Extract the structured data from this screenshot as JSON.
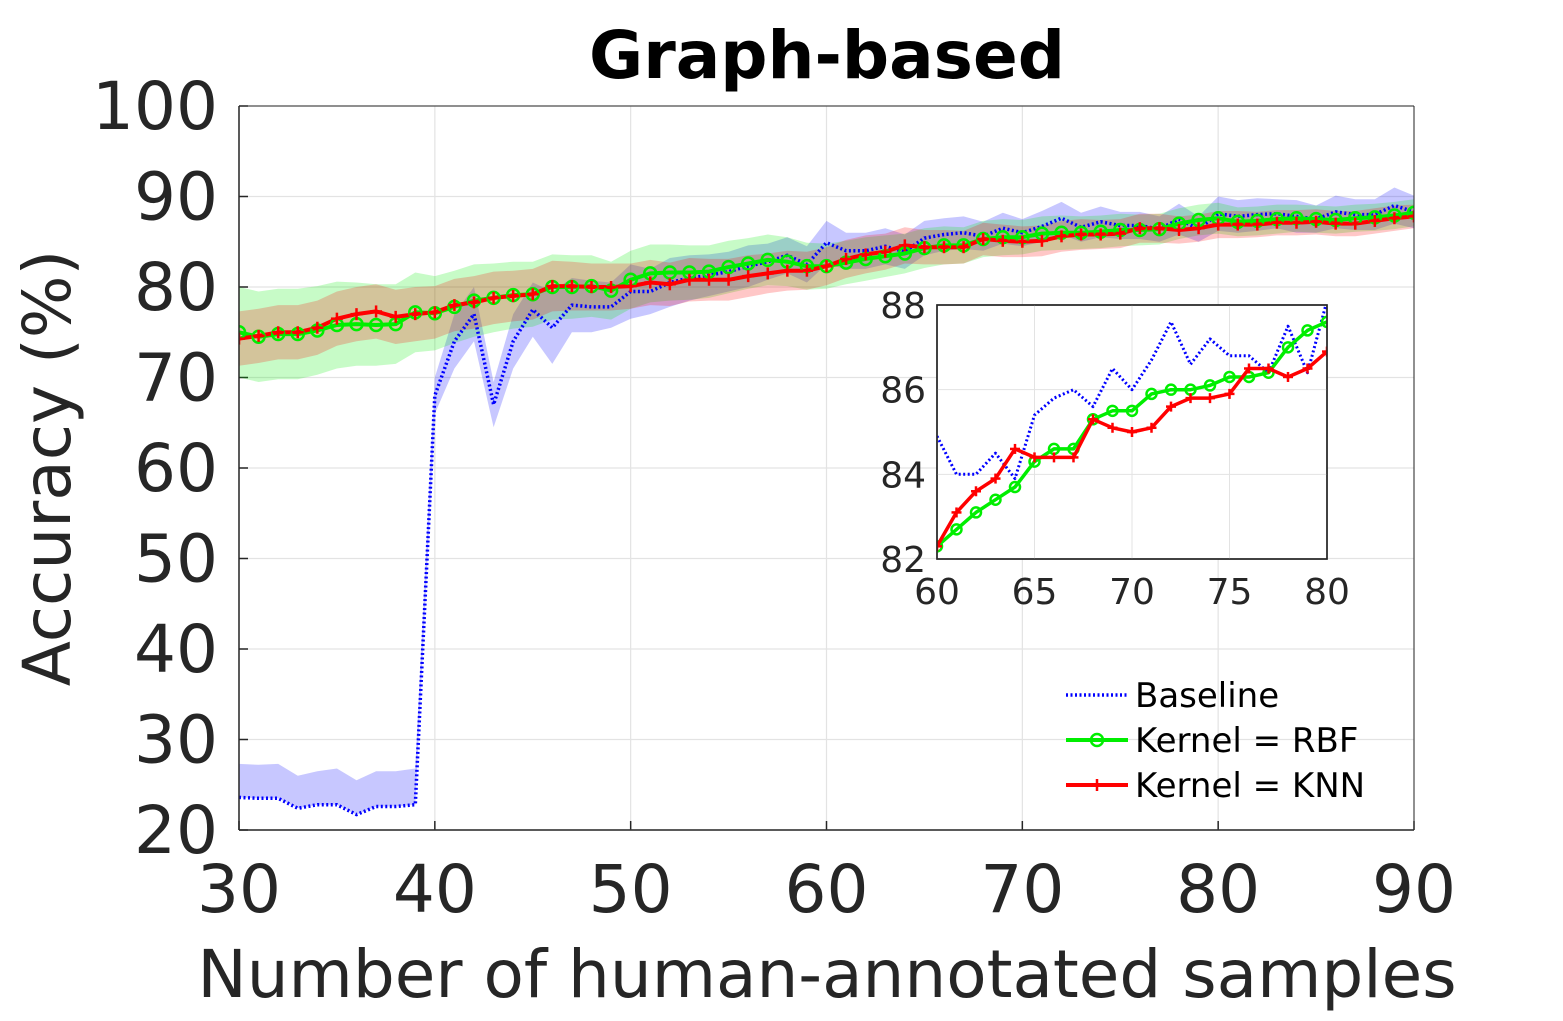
{
  "chart_data": [
    {
      "type": "line",
      "title": "Graph-based",
      "xlabel": "Number of human-annotated samples",
      "ylabel": "Accuracy (%)",
      "xlim": [
        30,
        90
      ],
      "ylim": [
        20,
        100
      ],
      "xticks": [
        "30",
        "40",
        "50",
        "60",
        "70",
        "80",
        "90"
      ],
      "yticks": [
        "20",
        "30",
        "40",
        "50",
        "60",
        "70",
        "80",
        "90",
        "100"
      ],
      "grid": true,
      "legend_position": "bottom-right",
      "x": [
        30,
        31,
        32,
        33,
        34,
        35,
        36,
        37,
        38,
        39,
        40,
        41,
        42,
        43,
        44,
        45,
        46,
        47,
        48,
        49,
        50,
        51,
        52,
        53,
        54,
        55,
        56,
        57,
        58,
        59,
        60,
        61,
        62,
        63,
        64,
        65,
        66,
        67,
        68,
        69,
        70,
        71,
        72,
        73,
        74,
        75,
        76,
        77,
        78,
        79,
        80,
        81,
        82,
        83,
        84,
        85,
        86,
        87,
        88,
        89,
        90
      ],
      "series": [
        {
          "name": "Baseline",
          "color": "#0000ff",
          "style": "dotted",
          "values": [
            23.6,
            23.5,
            23.5,
            22.4,
            22.8,
            22.8,
            21.7,
            22.6,
            22.6,
            22.8,
            68,
            74,
            77,
            67,
            74,
            77.5,
            75.5,
            78,
            77.8,
            77.8,
            79.5,
            79.5,
            80.5,
            81,
            81.3,
            81.7,
            82.3,
            82.8,
            83.5,
            82.5,
            84.9,
            84,
            84,
            84.5,
            83.9,
            85.4,
            85.8,
            86,
            85.6,
            86.5,
            86,
            86.7,
            87.6,
            86.6,
            87.2,
            86.8,
            86.8,
            86.4,
            87.5,
            86.4,
            88.1,
            87.8,
            88,
            88.1,
            87.8,
            87.5,
            88.3,
            88,
            88,
            89,
            88.3
          ],
          "band_low": [
            23.6,
            23.5,
            23.5,
            22.4,
            22.8,
            22.8,
            21.7,
            22.6,
            22.6,
            22.8,
            66,
            71,
            74,
            64.5,
            71,
            74.5,
            71.5,
            75,
            75,
            75.5,
            76.5,
            77,
            77.8,
            78.5,
            79,
            79.5,
            80,
            80.8,
            81.5,
            80.5,
            82.5,
            82,
            82,
            82.5,
            82,
            83.5,
            84,
            84.2,
            84,
            84.8,
            84.5,
            85,
            85.8,
            85,
            85.5,
            85.3,
            85.3,
            85,
            85.8,
            85,
            86.2,
            86,
            86.2,
            86.5,
            86,
            86,
            86.5,
            86.3,
            86.3,
            87,
            86.5
          ],
          "band_high": [
            27.3,
            27.2,
            27.3,
            26,
            26.5,
            26.8,
            25.5,
            26.5,
            26.5,
            26.8,
            70,
            77,
            80,
            69.5,
            77,
            80.5,
            79.5,
            81,
            80.7,
            80.5,
            82.5,
            82,
            83.2,
            83.5,
            83.6,
            83.9,
            84.6,
            84.8,
            85.5,
            84.5,
            87.3,
            86,
            86,
            86.5,
            85.8,
            87.3,
            87.6,
            87.8,
            87.2,
            88.2,
            87.5,
            88.4,
            89.4,
            88.2,
            88.9,
            88.3,
            88.3,
            87.8,
            89.2,
            87.8,
            90,
            89.6,
            89.8,
            89.7,
            89.6,
            89,
            90.1,
            89.7,
            89.7,
            91,
            90.1
          ]
        },
        {
          "name": "Kernel = RBF",
          "color": "#00ee00",
          "style": "solid",
          "marker": "circle",
          "values": [
            75,
            74.5,
            74.8,
            74.8,
            75.2,
            75.8,
            75.9,
            75.8,
            75.9,
            77.2,
            77.1,
            77.8,
            78.5,
            78.8,
            79.1,
            79.2,
            80,
            80,
            80.1,
            79.6,
            80.8,
            81.5,
            81.6,
            81.6,
            81.7,
            82.2,
            82.6,
            83,
            82.8,
            82.3,
            82.3,
            82.7,
            83.1,
            83.4,
            83.7,
            84.3,
            84.6,
            84.6,
            85.3,
            85.5,
            85.5,
            85.9,
            86,
            86,
            86.1,
            86.3,
            86.3,
            86.4,
            87,
            87.4,
            87.6,
            87.2,
            87.3,
            87.5,
            87.6,
            87.5,
            87.4,
            87.6,
            87.7,
            87.9,
            88.2
          ],
          "band_low": [
            70,
            69.5,
            69.8,
            69.8,
            70.3,
            71,
            71.3,
            71.3,
            71.5,
            72.8,
            73,
            73.8,
            74.5,
            75,
            75.4,
            75.6,
            76.4,
            76.5,
            76.7,
            76.4,
            77.6,
            78.3,
            78.5,
            78.6,
            78.8,
            79.3,
            79.8,
            80.2,
            80.1,
            79.7,
            79.8,
            80.3,
            80.7,
            81.1,
            81.5,
            82.1,
            82.5,
            82.6,
            83.3,
            83.5,
            83.6,
            84,
            84.1,
            84.2,
            84.3,
            84.5,
            84.6,
            84.7,
            85.3,
            85.7,
            85.9,
            85.6,
            85.7,
            85.9,
            86.1,
            86,
            85.9,
            86.1,
            86.2,
            86.4,
            86.7
          ],
          "band_high": [
            80,
            79.5,
            79.8,
            79.8,
            80.1,
            80.6,
            80.5,
            80.3,
            80.3,
            81.6,
            81.2,
            81.8,
            82.5,
            82.6,
            82.8,
            82.8,
            83.6,
            83.5,
            83.5,
            82.8,
            84,
            84.7,
            84.7,
            84.6,
            84.6,
            85.1,
            85.4,
            85.8,
            85.5,
            84.9,
            84.8,
            85.1,
            85.5,
            85.7,
            85.9,
            86.5,
            86.7,
            86.6,
            87.3,
            87.5,
            87.4,
            87.8,
            87.9,
            87.8,
            87.9,
            88.1,
            88,
            88.1,
            88.7,
            89.1,
            89.3,
            88.8,
            88.9,
            89.1,
            89.1,
            89,
            88.9,
            89.1,
            89.2,
            89.4,
            89.7
          ]
        },
        {
          "name": "Kernel = KNN",
          "color": "#ff0000",
          "style": "solid",
          "marker": "plus",
          "values": [
            74.3,
            74.6,
            75,
            75,
            75.5,
            76.5,
            77,
            77.3,
            76.7,
            77,
            77.2,
            78,
            78.3,
            78.8,
            79,
            79.2,
            80.1,
            80.1,
            80,
            80,
            80.1,
            80.5,
            80.3,
            80.8,
            80.8,
            80.8,
            81.2,
            81.5,
            81.8,
            81.8,
            82.3,
            83.1,
            83.6,
            83.9,
            84.6,
            84.4,
            84.4,
            84.4,
            85.3,
            85.1,
            85,
            85.1,
            85.6,
            85.8,
            85.8,
            85.9,
            86.5,
            86.5,
            86.3,
            86.5,
            86.9,
            86.9,
            86.9,
            87.1,
            87.1,
            87.2,
            87,
            87,
            87.3,
            87.6,
            87.8
          ],
          "band_low": [
            71.3,
            71.6,
            72,
            72,
            72.5,
            73.5,
            74,
            74.3,
            73.7,
            74,
            74.3,
            75.1,
            75.4,
            75.9,
            76.2,
            76.4,
            77.3,
            77.4,
            77.4,
            77.4,
            77.6,
            78,
            77.9,
            78.4,
            78.5,
            78.5,
            78.9,
            79.3,
            79.6,
            79.7,
            80.2,
            81,
            81.5,
            81.9,
            82.6,
            82.5,
            82.5,
            82.6,
            83.5,
            83.3,
            83.3,
            83.4,
            83.9,
            84.1,
            84.2,
            84.3,
            84.9,
            84.9,
            84.8,
            85,
            85.4,
            85.4,
            85.5,
            85.7,
            85.7,
            85.8,
            85.6,
            85.6,
            85.9,
            86.2,
            86.5
          ],
          "band_high": [
            77.3,
            77.6,
            78,
            78,
            78.5,
            79.5,
            80,
            80.3,
            79.7,
            80,
            80.1,
            80.9,
            81.2,
            81.7,
            81.8,
            82,
            82.9,
            82.8,
            82.6,
            82.6,
            82.6,
            83,
            82.7,
            83.2,
            83.1,
            83.1,
            83.5,
            83.7,
            84,
            83.9,
            84.4,
            85.2,
            85.7,
            85.9,
            86.6,
            86.3,
            86.3,
            86.2,
            87.1,
            86.9,
            86.7,
            86.8,
            87.3,
            87.5,
            87.4,
            87.5,
            88.1,
            88.1,
            87.8,
            88,
            88.4,
            88.4,
            88.3,
            88.5,
            88.5,
            88.6,
            88.4,
            88.4,
            88.7,
            89,
            89.1
          ]
        }
      ]
    },
    {
      "type": "line",
      "title": "",
      "xlim": [
        60,
        80
      ],
      "ylim": [
        82,
        88
      ],
      "xticks": [
        "60",
        "65",
        "70",
        "75",
        "80"
      ],
      "yticks": [
        "82",
        "84",
        "86",
        "88"
      ],
      "grid": true
    }
  ]
}
